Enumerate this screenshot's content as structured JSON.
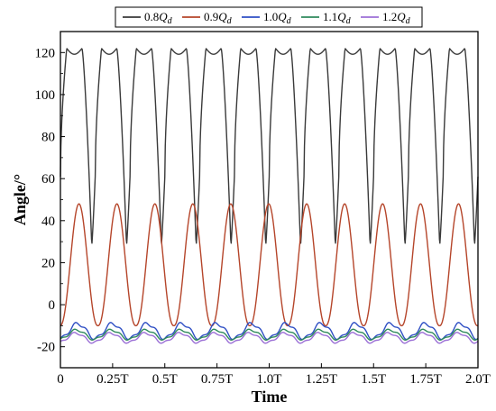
{
  "chart_data": {
    "type": "line",
    "xlabel": "Time",
    "ylabel": "Angle/°",
    "xlim": [
      0,
      2.0
    ],
    "ylim": [
      -30,
      130
    ],
    "grid": false,
    "legend_placement": "top",
    "x_ticks": [
      {
        "value": 0,
        "label": "0"
      },
      {
        "value": 0.25,
        "label": "0.25T"
      },
      {
        "value": 0.5,
        "label": "0.5T"
      },
      {
        "value": 0.75,
        "label": "0.75T"
      },
      {
        "value": 1.0,
        "label": "1.0T"
      },
      {
        "value": 1.25,
        "label": "1.25T"
      },
      {
        "value": 1.5,
        "label": "1.5T"
      },
      {
        "value": 1.75,
        "label": "1.75T"
      },
      {
        "value": 2.0,
        "label": "2.0T"
      }
    ],
    "y_ticks": [
      {
        "value": -20,
        "label": "-20"
      },
      {
        "value": 0,
        "label": "0"
      },
      {
        "value": 20,
        "label": "20"
      },
      {
        "value": 40,
        "label": "40"
      },
      {
        "value": 60,
        "label": "60"
      },
      {
        "value": 80,
        "label": "80"
      },
      {
        "value": 100,
        "label": "100"
      },
      {
        "value": 120,
        "label": "120"
      }
    ],
    "series": [
      {
        "name": "0.8Q",
        "subscript": "d",
        "color": "#3a3a3a",
        "periods": 12,
        "phase": 0.0,
        "type": "sharp",
        "peak": 122,
        "trough": 28
      },
      {
        "name": "0.9Q",
        "subscript": "d",
        "color": "#b5452a",
        "periods": 11,
        "phase": 0.012,
        "type": "smooth",
        "peak": 48,
        "trough": -10
      },
      {
        "name": "1.0Q",
        "subscript": "d",
        "color": "#2f4fc4",
        "periods": 12,
        "phase": 0.0,
        "type": "small",
        "peak": -9,
        "trough": -16
      },
      {
        "name": "1.1Q",
        "subscript": "d",
        "color": "#2f8a5c",
        "periods": 12,
        "phase": 0.03,
        "type": "small",
        "peak": -12,
        "trough": -16.5
      },
      {
        "name": "1.2Q",
        "subscript": "d",
        "color": "#9b6fd6",
        "periods": 12,
        "phase": 0.05,
        "type": "small",
        "peak": -13.5,
        "trough": -18
      }
    ]
  }
}
